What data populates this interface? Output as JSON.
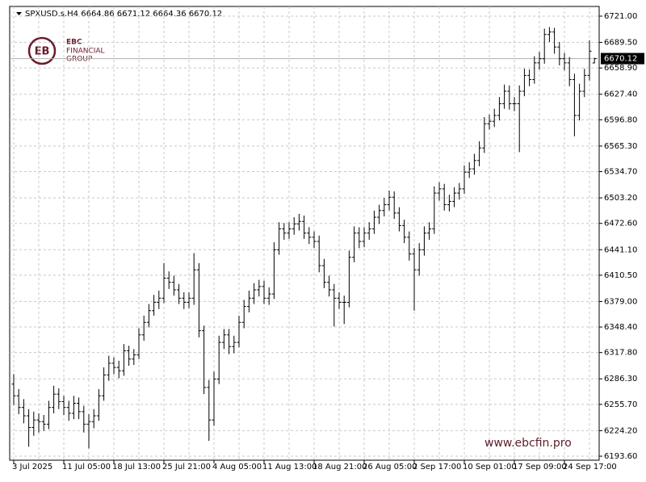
{
  "chart_data": {
    "type": "ohlc",
    "title": "SPXUSD.s.H4  6664.86 6671.12 6664.36 6670.12",
    "logo": {
      "mark": "EBC",
      "line1": "FINANCIAL",
      "line2": "GROUP"
    },
    "watermark": "www.ebcfin.pro",
    "color": "#000000",
    "grid": true,
    "ylim": [
      6188.8,
      6732.6
    ],
    "yticks": [
      {
        "value": 6193.6,
        "label": "6193.60"
      },
      {
        "value": 6224.2,
        "label": "6224.20"
      },
      {
        "value": 6255.7,
        "label": "6255.70"
      },
      {
        "value": 6286.3,
        "label": "6286.30"
      },
      {
        "value": 6317.8,
        "label": "6317.80"
      },
      {
        "value": 6348.4,
        "label": "6348.40"
      },
      {
        "value": 6379,
        "label": "6379.00"
      },
      {
        "value": 6410.5,
        "label": "6410.50"
      },
      {
        "value": 6441.1,
        "label": "6441.10"
      },
      {
        "value": 6472.6,
        "label": "6472.60"
      },
      {
        "value": 6503.2,
        "label": "6503.20"
      },
      {
        "value": 6534.7,
        "label": "6534.70"
      },
      {
        "value": 6565.3,
        "label": "6565.30"
      },
      {
        "value": 6596.8,
        "label": "6596.80"
      },
      {
        "value": 6627.4,
        "label": "6627.40"
      },
      {
        "value": 6658.9,
        "label": "6658.90"
      },
      {
        "value": 6689.5,
        "label": "6689.50"
      },
      {
        "value": 6721,
        "label": "6721.00"
      }
    ],
    "current_price": {
      "value": 6670.12,
      "label": "6670.12"
    },
    "categories": [
      "3 Jul 2025",
      null,
      null,
      null,
      null,
      null,
      null,
      null,
      null,
      null,
      "11 Jul 05:00",
      null,
      null,
      null,
      null,
      null,
      null,
      null,
      null,
      null,
      "18 Jul 13:00",
      null,
      null,
      null,
      null,
      null,
      null,
      null,
      null,
      null,
      "25 Jul 21:00",
      null,
      null,
      null,
      null,
      null,
      null,
      null,
      null,
      null,
      "4 Aug 05:00",
      null,
      null,
      null,
      null,
      null,
      null,
      null,
      null,
      null,
      "11 Aug 13:00",
      null,
      null,
      null,
      null,
      null,
      null,
      null,
      null,
      null,
      "18 Aug 21:00",
      null,
      null,
      null,
      null,
      null,
      null,
      null,
      null,
      null,
      "26 Aug 05:00",
      null,
      null,
      null,
      null,
      null,
      null,
      null,
      null,
      null,
      "2 Sep 17:00",
      null,
      null,
      null,
      null,
      null,
      null,
      null,
      null,
      null,
      "10 Sep 01:00",
      null,
      null,
      null,
      null,
      null,
      null,
      null,
      null,
      null,
      "17 Sep 09:00",
      null,
      null,
      null,
      null,
      null,
      null,
      null,
      null,
      null,
      "24 Sep 17:00",
      null,
      null,
      null,
      null,
      null,
      null
    ],
    "open": [
      6280,
      6266,
      6252,
      6242,
      6228,
      6237,
      6235,
      6232,
      6252,
      6268,
      6259,
      6252,
      6245,
      6257,
      6247,
      6232,
      6235,
      6242,
      6266,
      6291,
      6305,
      6300,
      6296,
      6320,
      6310,
      6315,
      6339,
      6354,
      6368,
      6378,
      6383,
      6407,
      6402,
      6393,
      6383,
      6378,
      6383,
      6417,
      6344,
      6276,
      6237,
      6286,
      6330,
      6339,
      6325,
      6330,
      6354,
      6373,
      6383,
      6393,
      6397,
      6383,
      6388,
      6441,
      6466,
      6461,
      6466,
      6472,
      6475,
      6461,
      6456,
      6451,
      6422,
      6402,
      6393,
      6383,
      6378,
      6378,
      6432,
      6461,
      6451,
      6461,
      6466,
      6480,
      6488,
      6495,
      6504,
      6485,
      6470,
      6456,
      6436,
      6417,
      6441,
      6461,
      6466,
      6509,
      6514,
      6495,
      6499,
      6509,
      6514,
      6534,
      6538,
      6548,
      6563,
      6592,
      6595,
      6602,
      6616,
      6631,
      6616,
      6616,
      6631,
      6650,
      6645,
      6665,
      6670,
      6699,
      6702,
      6684,
      6670,
      6665,
      6645,
      6602,
      6631,
      6650,
      6664.86
    ],
    "high": [
      6292,
      6274,
      6262,
      6250,
      6247,
      6245,
      6243,
      6260,
      6278,
      6275,
      6266,
      6260,
      6266,
      6264,
      6254,
      6244,
      6250,
      6274,
      6300,
      6314,
      6312,
      6308,
      6328,
      6326,
      6322,
      6347,
      6362,
      6376,
      6387,
      6392,
      6425,
      6415,
      6410,
      6400,
      6390,
      6390,
      6437,
      6425,
      6350,
      6285,
      6295,
      6338,
      6346,
      6346,
      6338,
      6362,
      6381,
      6392,
      6401,
      6405,
      6404,
      6396,
      6450,
      6474,
      6473,
      6474,
      6480,
      6484,
      6482,
      6468,
      6463,
      6458,
      6430,
      6410,
      6400,
      6390,
      6386,
      6440,
      6469,
      6468,
      6468,
      6474,
      6488,
      6495,
      6503,
      6512,
      6511,
      6492,
      6477,
      6463,
      6443,
      6449,
      6469,
      6474,
      6517,
      6522,
      6520,
      6507,
      6516,
      6521,
      6542,
      6546,
      6556,
      6571,
      6600,
      6603,
      6610,
      6624,
      6639,
      6638,
      6624,
      6638,
      6658,
      6657,
      6673,
      6678,
      6706,
      6708,
      6707,
      6690,
      6677,
      6672,
      6652,
      6640,
      6658,
      6692,
      6671.12
    ],
    "low": [
      6255,
      6244,
      6233,
      6205,
      6218,
      6222,
      6224,
      6226,
      6245,
      6250,
      6243,
      6236,
      6238,
      6238,
      6222,
      6203,
      6227,
      6236,
      6260,
      6284,
      6292,
      6287,
      6290,
      6302,
      6303,
      6310,
      6332,
      6348,
      6362,
      6370,
      6377,
      6394,
      6386,
      6376,
      6370,
      6371,
      6375,
      6336,
      6268,
      6212,
      6230,
      6280,
      6322,
      6316,
      6317,
      6324,
      6347,
      6366,
      6376,
      6385,
      6376,
      6375,
      6382,
      6435,
      6453,
      6454,
      6459,
      6464,
      6454,
      6448,
      6443,
      6414,
      6395,
      6385,
      6349,
      6370,
      6352,
      6372,
      6426,
      6443,
      6444,
      6453,
      6460,
      6472,
      6481,
      6488,
      6478,
      6463,
      6449,
      6428,
      6368,
      6410,
      6434,
      6453,
      6460,
      6500,
      6488,
      6487,
      6492,
      6501,
      6508,
      6527,
      6531,
      6541,
      6557,
      6585,
      6588,
      6596,
      6610,
      6609,
      6607,
      6558,
      6625,
      6637,
      6640,
      6657,
      6664,
      6690,
      6676,
      6662,
      6656,
      6637,
      6577,
      6596,
      6624,
      6644,
      6664.36
    ],
    "close": [
      6266,
      6252,
      6242,
      6228,
      6237,
      6235,
      6232,
      6252,
      6268,
      6259,
      6252,
      6245,
      6257,
      6247,
      6232,
      6235,
      6242,
      6266,
      6291,
      6305,
      6300,
      6296,
      6320,
      6310,
      6315,
      6339,
      6354,
      6368,
      6378,
      6383,
      6407,
      6402,
      6393,
      6383,
      6378,
      6383,
      6417,
      6344,
      6276,
      6237,
      6286,
      6330,
      6339,
      6325,
      6330,
      6354,
      6373,
      6383,
      6393,
      6397,
      6383,
      6388,
      6441,
      6466,
      6461,
      6466,
      6472,
      6475,
      6461,
      6456,
      6451,
      6422,
      6402,
      6393,
      6383,
      6378,
      6378,
      6432,
      6461,
      6451,
      6461,
      6466,
      6480,
      6488,
      6495,
      6504,
      6485,
      6470,
      6456,
      6436,
      6417,
      6441,
      6461,
      6466,
      6509,
      6514,
      6495,
      6499,
      6509,
      6514,
      6534,
      6538,
      6548,
      6563,
      6592,
      6595,
      6602,
      6616,
      6631,
      6616,
      6616,
      6631,
      6650,
      6645,
      6665,
      6670,
      6699,
      6702,
      6684,
      6670,
      6665,
      6645,
      6602,
      6631,
      6650,
      6679,
      6670.12
    ]
  }
}
